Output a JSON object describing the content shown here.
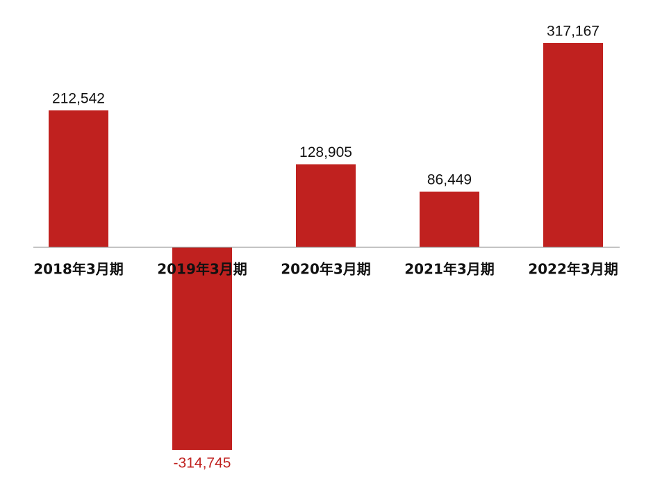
{
  "chart_data": {
    "type": "bar",
    "categories": [
      "2018年3月期",
      "2019年3月期",
      "2020年3月期",
      "2021年3月期",
      "2022年3月期"
    ],
    "values": [
      212542,
      -314745,
      128905,
      86449,
      317167
    ],
    "value_labels": [
      "212,542",
      "-314,745",
      "128,905",
      "86,449",
      "317,167"
    ],
    "color": "#c0211f",
    "label_color": "#111111",
    "negative_label_color": "#c0211f",
    "axis_line_color": "#999999"
  }
}
